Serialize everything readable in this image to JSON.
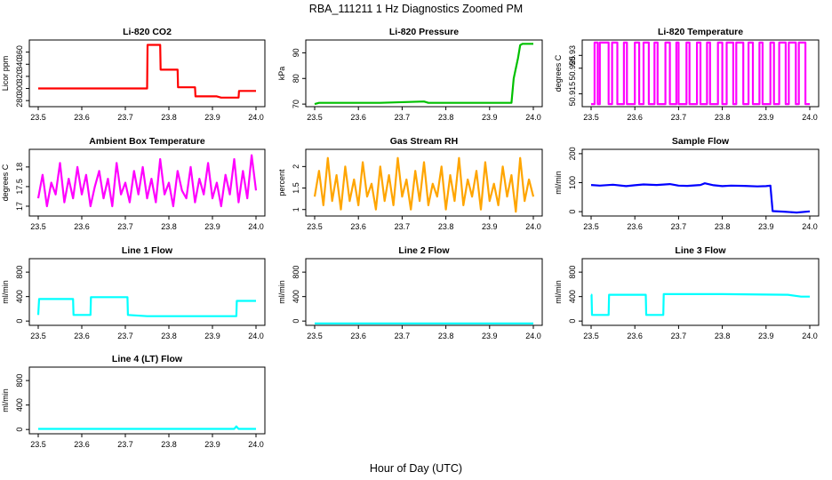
{
  "figure": {
    "title": "RBA_111211  1 Hz Diagnostics Zoomed PM",
    "xlabel": "Hour of Day (UTC)"
  },
  "chart_data": [
    {
      "type": "line",
      "title": "Li-820 CO2",
      "ylabel": "Licor ppm",
      "color": "#ff0000",
      "xlim": [
        23.5,
        24.0
      ],
      "ylim": [
        270,
        380
      ],
      "xticks": [
        "23.5",
        "23.6",
        "23.7",
        "23.8",
        "23.9",
        "24.0"
      ],
      "yticks": [
        280,
        300,
        320,
        340,
        360
      ],
      "series": [
        {
          "x": [
            23.5,
            23.75,
            23.751,
            23.76,
            23.78,
            23.781,
            23.82,
            23.821,
            23.86,
            23.861,
            23.91,
            23.92,
            23.96,
            23.961,
            24.0
          ],
          "y": [
            300,
            300,
            372,
            372,
            372,
            331,
            331,
            302,
            302,
            287,
            287,
            285,
            285,
            296,
            296
          ]
        }
      ]
    },
    {
      "type": "line",
      "title": "Li-820 Pressure",
      "ylabel": "kPa",
      "color": "#00c000",
      "xlim": [
        23.5,
        24.0
      ],
      "ylim": [
        69,
        95
      ],
      "xticks": [
        "23.5",
        "23.6",
        "23.7",
        "23.8",
        "23.9",
        "24.0"
      ],
      "yticks": [
        70,
        80,
        90
      ],
      "series": [
        {
          "x": [
            23.5,
            23.51,
            23.65,
            23.75,
            23.76,
            23.95,
            23.955,
            23.965,
            23.97,
            23.975,
            24.0
          ],
          "y": [
            70,
            70.5,
            70.5,
            71,
            70.5,
            70.5,
            80,
            88,
            93,
            93.5,
            93.5
          ]
        }
      ]
    },
    {
      "type": "line",
      "title": "Li-820 Temperature",
      "ylabel": "degrees C",
      "color": "#ff00ff",
      "xlim": [
        23.5,
        24.0
      ],
      "ylim": [
        50.91,
        50.936
      ],
      "xticks": [
        "23.5",
        "23.6",
        "23.7",
        "23.8",
        "23.9",
        "24.0"
      ],
      "yticks": [
        50.915,
        50.925,
        50.93
      ],
      "series": [
        {
          "x": [
            23.5,
            23.508,
            23.508,
            23.515,
            23.515,
            23.52,
            23.52,
            23.54,
            23.54,
            23.548,
            23.548,
            23.56,
            23.56,
            23.575,
            23.575,
            23.582,
            23.582,
            23.6,
            23.6,
            23.61,
            23.61,
            23.62,
            23.62,
            23.632,
            23.632,
            23.645,
            23.645,
            23.652,
            23.652,
            23.67,
            23.67,
            23.68,
            23.68,
            23.695,
            23.695,
            23.7,
            23.7,
            23.718,
            23.718,
            23.725,
            23.725,
            23.742,
            23.742,
            23.75,
            23.75,
            23.765,
            23.765,
            23.772,
            23.772,
            23.79,
            23.79,
            23.8,
            23.8,
            23.81,
            23.81,
            23.825,
            23.825,
            23.832,
            23.832,
            23.848,
            23.848,
            23.86,
            23.86,
            23.87,
            23.87,
            23.885,
            23.885,
            23.892,
            23.892,
            23.91,
            23.91,
            23.918,
            23.918,
            23.93,
            23.93,
            23.945,
            23.945,
            23.952,
            23.952,
            23.968,
            23.968,
            23.975,
            23.975,
            23.99,
            23.99,
            24.0
          ],
          "y": [
            50.911,
            50.911,
            50.935,
            50.935,
            50.911,
            50.911,
            50.935,
            50.935,
            50.911,
            50.911,
            50.935,
            50.935,
            50.911,
            50.911,
            50.935,
            50.935,
            50.911,
            50.911,
            50.935,
            50.935,
            50.911,
            50.911,
            50.935,
            50.935,
            50.911,
            50.911,
            50.935,
            50.935,
            50.911,
            50.911,
            50.935,
            50.935,
            50.911,
            50.911,
            50.935,
            50.935,
            50.911,
            50.911,
            50.935,
            50.935,
            50.911,
            50.911,
            50.935,
            50.935,
            50.911,
            50.911,
            50.935,
            50.935,
            50.911,
            50.911,
            50.935,
            50.935,
            50.911,
            50.911,
            50.935,
            50.935,
            50.911,
            50.911,
            50.935,
            50.935,
            50.911,
            50.911,
            50.935,
            50.935,
            50.911,
            50.911,
            50.935,
            50.935,
            50.911,
            50.911,
            50.935,
            50.935,
            50.911,
            50.911,
            50.935,
            50.935,
            50.911,
            50.911,
            50.935,
            50.935,
            50.911,
            50.911,
            50.935,
            50.935,
            50.911,
            50.911
          ]
        }
      ]
    },
    {
      "type": "line",
      "title": "Ambient Box Temperature",
      "ylabel": "degrees C",
      "color": "#ff00ff",
      "xlim": [
        23.5,
        24.0
      ],
      "ylim": [
        16.75,
        18.45
      ],
      "xticks": [
        "23.5",
        "23.6",
        "23.7",
        "23.8",
        "23.9",
        "24.0"
      ],
      "yticks": [
        17.0,
        17.5,
        18.0
      ],
      "series": [
        {
          "x": [
            23.5,
            23.51,
            23.52,
            23.53,
            23.54,
            23.55,
            23.56,
            23.57,
            23.58,
            23.59,
            23.6,
            23.61,
            23.62,
            23.63,
            23.64,
            23.65,
            23.66,
            23.67,
            23.68,
            23.69,
            23.7,
            23.71,
            23.72,
            23.73,
            23.74,
            23.75,
            23.76,
            23.77,
            23.78,
            23.79,
            23.8,
            23.81,
            23.82,
            23.83,
            23.84,
            23.85,
            23.86,
            23.87,
            23.88,
            23.89,
            23.9,
            23.91,
            23.92,
            23.93,
            23.94,
            23.95,
            23.96,
            23.97,
            23.98,
            23.99,
            24.0
          ],
          "y": [
            17.2,
            17.8,
            17.0,
            17.6,
            17.3,
            18.1,
            17.1,
            17.7,
            17.2,
            18.0,
            17.3,
            17.8,
            17.0,
            17.5,
            17.9,
            17.2,
            17.7,
            17.0,
            18.1,
            17.3,
            17.6,
            17.1,
            17.9,
            17.3,
            18.0,
            17.2,
            17.7,
            17.1,
            18.2,
            17.3,
            17.6,
            17.0,
            17.9,
            17.4,
            17.2,
            18.0,
            17.1,
            17.7,
            17.3,
            18.1,
            17.2,
            17.6,
            17.0,
            17.8,
            17.3,
            18.2,
            17.1,
            17.9,
            17.2,
            18.3,
            17.4
          ]
        }
      ]
    },
    {
      "type": "line",
      "title": "Gas Stream RH",
      "ylabel": "percent",
      "color": "#ffa500",
      "xlim": [
        23.5,
        24.0
      ],
      "ylim": [
        0.85,
        2.4
      ],
      "xticks": [
        "23.5",
        "23.6",
        "23.7",
        "23.8",
        "23.9",
        "24.0"
      ],
      "yticks": [
        1.0,
        1.5,
        2.0
      ],
      "series": [
        {
          "x": [
            23.5,
            23.51,
            23.52,
            23.53,
            23.54,
            23.55,
            23.56,
            23.57,
            23.58,
            23.59,
            23.6,
            23.61,
            23.62,
            23.63,
            23.64,
            23.65,
            23.66,
            23.67,
            23.68,
            23.69,
            23.7,
            23.71,
            23.72,
            23.73,
            23.74,
            23.75,
            23.76,
            23.77,
            23.78,
            23.79,
            23.8,
            23.81,
            23.82,
            23.83,
            23.84,
            23.85,
            23.86,
            23.87,
            23.88,
            23.89,
            23.9,
            23.91,
            23.92,
            23.93,
            23.94,
            23.95,
            23.96,
            23.97,
            23.98,
            23.99,
            24.0
          ],
          "y": [
            1.3,
            1.9,
            1.1,
            2.2,
            1.2,
            1.8,
            1.0,
            2.0,
            1.2,
            1.7,
            1.1,
            2.1,
            1.3,
            1.6,
            1.0,
            2.0,
            1.2,
            1.8,
            1.1,
            2.2,
            1.3,
            1.7,
            1.0,
            1.9,
            1.2,
            2.1,
            1.1,
            1.6,
            1.3,
            2.0,
            1.0,
            1.8,
            1.2,
            2.2,
            1.1,
            1.7,
            1.3,
            1.9,
            1.0,
            2.1,
            1.2,
            1.6,
            1.1,
            2.0,
            1.3,
            1.8,
            0.95,
            2.2,
            1.2,
            1.7,
            1.3
          ]
        }
      ]
    },
    {
      "type": "line",
      "title": "Sample Flow",
      "ylabel": "ml/min",
      "color": "#0000ff",
      "xlim": [
        23.5,
        24.0
      ],
      "ylim": [
        -15,
        215
      ],
      "xticks": [
        "23.5",
        "23.6",
        "23.7",
        "23.8",
        "23.9",
        "24.0"
      ],
      "yticks": [
        0,
        100,
        200
      ],
      "series": [
        {
          "x": [
            23.5,
            23.52,
            23.55,
            23.58,
            23.6,
            23.62,
            23.65,
            23.68,
            23.7,
            23.72,
            23.75,
            23.76,
            23.78,
            23.8,
            23.82,
            23.85,
            23.88,
            23.9,
            23.91,
            23.915,
            23.94,
            23.97,
            24.0
          ],
          "y": [
            92,
            90,
            93,
            88,
            91,
            94,
            92,
            95,
            90,
            89,
            92,
            98,
            91,
            88,
            90,
            89,
            87,
            88,
            90,
            2,
            0,
            -3,
            1
          ]
        }
      ]
    },
    {
      "type": "line",
      "title": "Line 1 Flow",
      "ylabel": "ml/min",
      "color": "#00ffff",
      "xlim": [
        23.5,
        24.0
      ],
      "ylim": [
        -70,
        1020
      ],
      "xticks": [
        "23.5",
        "23.6",
        "23.7",
        "23.8",
        "23.9",
        "24.0"
      ],
      "yticks": [
        0,
        400,
        800
      ],
      "series": [
        {
          "x": [
            23.5,
            23.502,
            23.58,
            23.581,
            23.62,
            23.621,
            23.705,
            23.706,
            23.75,
            23.76,
            23.955,
            23.956,
            24.0
          ],
          "y": [
            100,
            360,
            360,
            100,
            100,
            390,
            390,
            100,
            80,
            80,
            80,
            330,
            330
          ]
        }
      ]
    },
    {
      "type": "line",
      "title": "Line 2 Flow",
      "ylabel": "ml/min",
      "color": "#00ffff",
      "xlim": [
        23.5,
        24.0
      ],
      "ylim": [
        -70,
        1020
      ],
      "xticks": [
        "23.5",
        "23.6",
        "23.7",
        "23.8",
        "23.9",
        "24.0"
      ],
      "yticks": [
        0,
        400,
        800
      ],
      "series": [
        {
          "x": [
            23.5,
            24.0
          ],
          "y": [
            -40,
            -40
          ]
        }
      ]
    },
    {
      "type": "line",
      "title": "Line 3 Flow",
      "ylabel": "ml/min",
      "color": "#00ffff",
      "xlim": [
        23.5,
        24.0
      ],
      "ylim": [
        -70,
        1020
      ],
      "xticks": [
        "23.5",
        "23.6",
        "23.7",
        "23.8",
        "23.9",
        "24.0"
      ],
      "yticks": [
        0,
        400,
        800
      ],
      "series": [
        {
          "x": [
            23.5,
            23.501,
            23.502,
            23.54,
            23.541,
            23.625,
            23.626,
            23.665,
            23.666,
            23.8,
            23.95,
            23.98,
            24.0
          ],
          "y": [
            430,
            430,
            100,
            100,
            430,
            430,
            100,
            100,
            440,
            440,
            430,
            400,
            400
          ]
        }
      ]
    },
    {
      "type": "line",
      "title": "Line 4 (LT) Flow",
      "ylabel": "ml/min",
      "color": "#00ffff",
      "xlim": [
        23.5,
        24.0
      ],
      "ylim": [
        -70,
        1020
      ],
      "xticks": [
        "23.5",
        "23.6",
        "23.7",
        "23.8",
        "23.9",
        "24.0"
      ],
      "yticks": [
        0,
        400,
        800
      ],
      "series": [
        {
          "x": [
            23.5,
            23.8,
            23.95,
            23.955,
            23.96,
            24.0
          ],
          "y": [
            10,
            10,
            10,
            50,
            10,
            10
          ]
        }
      ]
    }
  ]
}
